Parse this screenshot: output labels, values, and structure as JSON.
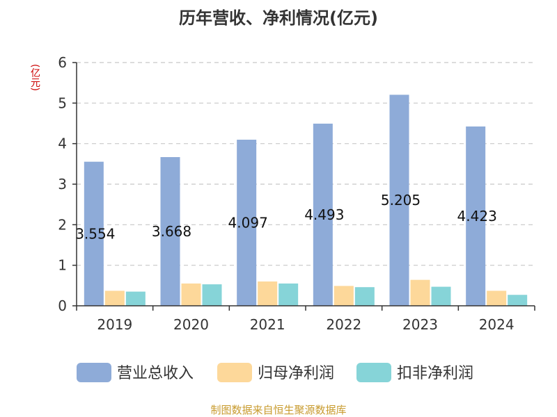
{
  "source": "制图数据来自恒生聚源数据库",
  "colors": {
    "revenue": "#8eabd8",
    "net_profit": "#fdd89a",
    "adjusted_net_profit": "#86d4d8"
  },
  "chart_data": {
    "type": "bar",
    "title": "历年营收、净利情况(亿元)",
    "unit": "(亿元)",
    "categories": [
      "2019",
      "2020",
      "2021",
      "2022",
      "2023",
      "2024"
    ],
    "ylim": [
      0,
      6
    ],
    "yticks": [
      "0",
      "1",
      "2",
      "3",
      "4",
      "5",
      "6"
    ],
    "grid": true,
    "legend_position": "bottom",
    "series": [
      {
        "name": "营业总收入",
        "values": [
          3.554,
          3.668,
          4.097,
          4.493,
          5.205,
          4.423
        ],
        "labels": [
          "3.554",
          "3.668",
          "4.097",
          "4.493",
          "5.205",
          "4.423"
        ]
      },
      {
        "name": "归母净利润",
        "values": [
          0.37,
          0.55,
          0.6,
          0.49,
          0.64,
          0.37
        ]
      },
      {
        "name": "扣非净利润",
        "values": [
          0.35,
          0.53,
          0.55,
          0.46,
          0.47,
          0.27
        ]
      }
    ]
  }
}
